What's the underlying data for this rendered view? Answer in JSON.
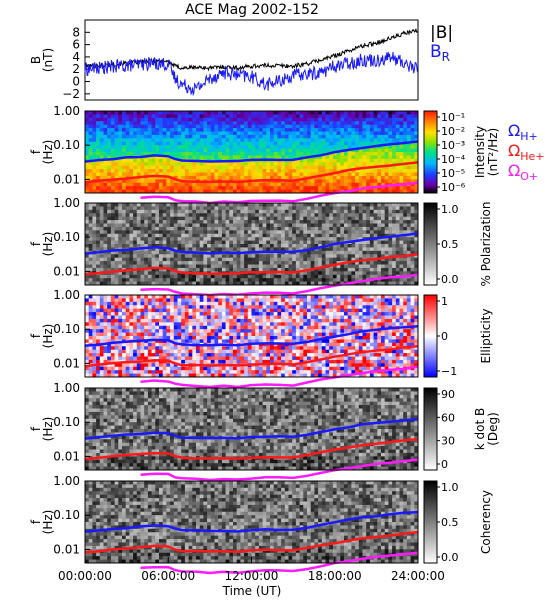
{
  "chart_data": {
    "type": "spectrogram-stack",
    "title": "ACE Mag 2002-152",
    "xlabel": "Time (UT)",
    "x_ticks": [
      "00:00:00",
      "06:00:00",
      "12:00:00",
      "18:00:00",
      "24:00:00"
    ],
    "xlim_hours": [
      0,
      24
    ],
    "panels": [
      {
        "id": "B",
        "type": "line",
        "ylabel": "B",
        "yunit": "(nT)",
        "ylim": [
          -3,
          10
        ],
        "y_ticks": [
          "8",
          "6",
          "4",
          "2",
          "0",
          "−2"
        ],
        "legend": [
          {
            "label": "|B|",
            "color": "#000000"
          },
          {
            "label": "B",
            "sub": "R",
            "color": "#1a1aff"
          }
        ],
        "series": [
          {
            "name": "|B|",
            "color": "#000000",
            "x": [
              0,
              1,
              2,
              3,
              4,
              5,
              6,
              6.5,
              7,
              8,
              9,
              10,
              11,
              12,
              13,
              14,
              15,
              16,
              17,
              18,
              19,
              20,
              21,
              22,
              23,
              24
            ],
            "values": [
              2.5,
              2.6,
              2.8,
              3.0,
              3.2,
              3.4,
              3.3,
              2.5,
              2.2,
              2.3,
              2.2,
              2.4,
              2.2,
              2.5,
              2.6,
              2.6,
              2.5,
              2.9,
              3.5,
              4.2,
              5.0,
              5.8,
              6.3,
              7.0,
              7.8,
              8.3
            ]
          },
          {
            "name": "B_R",
            "color": "#1a1aff",
            "x": [
              0,
              1,
              2,
              3,
              4,
              5,
              6,
              6.5,
              7,
              8,
              9,
              10,
              11,
              12,
              13,
              14,
              15,
              16,
              17,
              18,
              19,
              20,
              21,
              22,
              23,
              24
            ],
            "values": [
              2.0,
              2.2,
              2.4,
              2.6,
              2.8,
              3.0,
              2.8,
              0.5,
              -0.5,
              -1.2,
              0.5,
              1.5,
              1.0,
              0.8,
              -0.5,
              0.0,
              1.0,
              1.2,
              1.5,
              2.5,
              3.0,
              3.5,
              3.5,
              4.0,
              3.0,
              2.0
            ]
          }
        ]
      },
      {
        "id": "intensity",
        "type": "heatmap",
        "ylabel": "f",
        "yunit": "(Hz)",
        "y_ticks": [
          "1.00",
          "0.10",
          "0.01"
        ],
        "ylim_hz": [
          0.004,
          1.0
        ],
        "colorbar": {
          "label": "Intensity",
          "unit": "(nT²/Hz)",
          "ticks": [
            "10⁻¹",
            "10⁻²",
            "10⁻³",
            "10⁻⁴",
            "10⁻⁵",
            "10⁻⁶"
          ],
          "scale": "rainbow"
        },
        "gyro_labels": [
          {
            "label": "Ω",
            "sub": "H+",
            "color": "#1a1aff"
          },
          {
            "label": "Ω",
            "sub": "He+",
            "color": "#ff1a1a"
          },
          {
            "label": "Ω",
            "sub": "O+",
            "color": "#ff1aff"
          }
        ]
      },
      {
        "id": "polarization",
        "type": "heatmap",
        "ylabel": "f",
        "yunit": "(Hz)",
        "y_ticks": [
          "1.00",
          "0.10",
          "0.01"
        ],
        "colorbar": {
          "label": "% Polarization",
          "ticks": [
            "1.0",
            "0.5",
            "0.0"
          ],
          "scale": "gray"
        }
      },
      {
        "id": "ellipticity",
        "type": "heatmap",
        "ylabel": "f",
        "yunit": "(Hz)",
        "y_ticks": [
          "1.00",
          "0.10",
          "0.01"
        ],
        "colorbar": {
          "label": "Ellipticity",
          "ticks": [
            "1",
            "0",
            "−1"
          ],
          "scale": "bwr"
        }
      },
      {
        "id": "kdotb",
        "type": "heatmap",
        "ylabel": "f",
        "yunit": "(Hz)",
        "y_ticks": [
          "1.00",
          "0.10",
          "0.01"
        ],
        "colorbar": {
          "label": "k dot B",
          "unit": "(Deg)",
          "ticks": [
            "90",
            "60",
            "30",
            "0"
          ],
          "scale": "gray"
        }
      },
      {
        "id": "coherency",
        "type": "heatmap",
        "ylabel": "f",
        "yunit": "(Hz)",
        "y_ticks": [
          "1.00",
          "0.10",
          "0.01"
        ],
        "colorbar": {
          "label": "Coherency",
          "ticks": [
            "1.0",
            "0.5",
            "0.0"
          ],
          "scale": "gray"
        }
      }
    ],
    "gyrofrequency_curves": [
      {
        "name": "H+",
        "color": "#1a1aff",
        "x": [
          0,
          1,
          2,
          3,
          4,
          5,
          6,
          6.5,
          7,
          8,
          9,
          10,
          11,
          12,
          13,
          14,
          15,
          16,
          17,
          18,
          19,
          20,
          21,
          22,
          23,
          24
        ],
        "values_hz": [
          0.033,
          0.036,
          0.04,
          0.043,
          0.046,
          0.05,
          0.048,
          0.04,
          0.036,
          0.035,
          0.034,
          0.035,
          0.034,
          0.037,
          0.038,
          0.038,
          0.037,
          0.043,
          0.052,
          0.062,
          0.073,
          0.085,
          0.094,
          0.105,
          0.115,
          0.125
        ]
      },
      {
        "name": "He+",
        "color": "#ff1a1a",
        "x": [
          0,
          1,
          2,
          3,
          4,
          5,
          6,
          6.5,
          7,
          8,
          9,
          10,
          11,
          12,
          13,
          14,
          15,
          16,
          17,
          18,
          19,
          20,
          21,
          22,
          23,
          24
        ],
        "values_hz": [
          0.0082,
          0.009,
          0.01,
          0.0108,
          0.0115,
          0.0125,
          0.012,
          0.01,
          0.009,
          0.0088,
          0.0086,
          0.0088,
          0.0086,
          0.0093,
          0.0095,
          0.0095,
          0.0093,
          0.0108,
          0.013,
          0.0155,
          0.0183,
          0.0213,
          0.0235,
          0.0263,
          0.0288,
          0.0313
        ]
      },
      {
        "name": "O+",
        "color": "#ff1aff",
        "x": [
          4,
          5,
          6,
          6.5,
          7,
          8,
          9,
          10,
          11,
          12,
          13,
          14,
          15,
          16,
          17,
          18,
          19,
          20,
          21,
          22,
          23,
          24
        ],
        "values_hz": [
          0.0029,
          0.0031,
          0.003,
          0.0025,
          0.0023,
          0.0022,
          0.0021,
          0.0022,
          0.0021,
          0.0023,
          0.0024,
          0.0024,
          0.0023,
          0.0027,
          0.0033,
          0.0039,
          0.0046,
          0.0053,
          0.0059,
          0.0066,
          0.0072,
          0.0078
        ]
      }
    ]
  }
}
